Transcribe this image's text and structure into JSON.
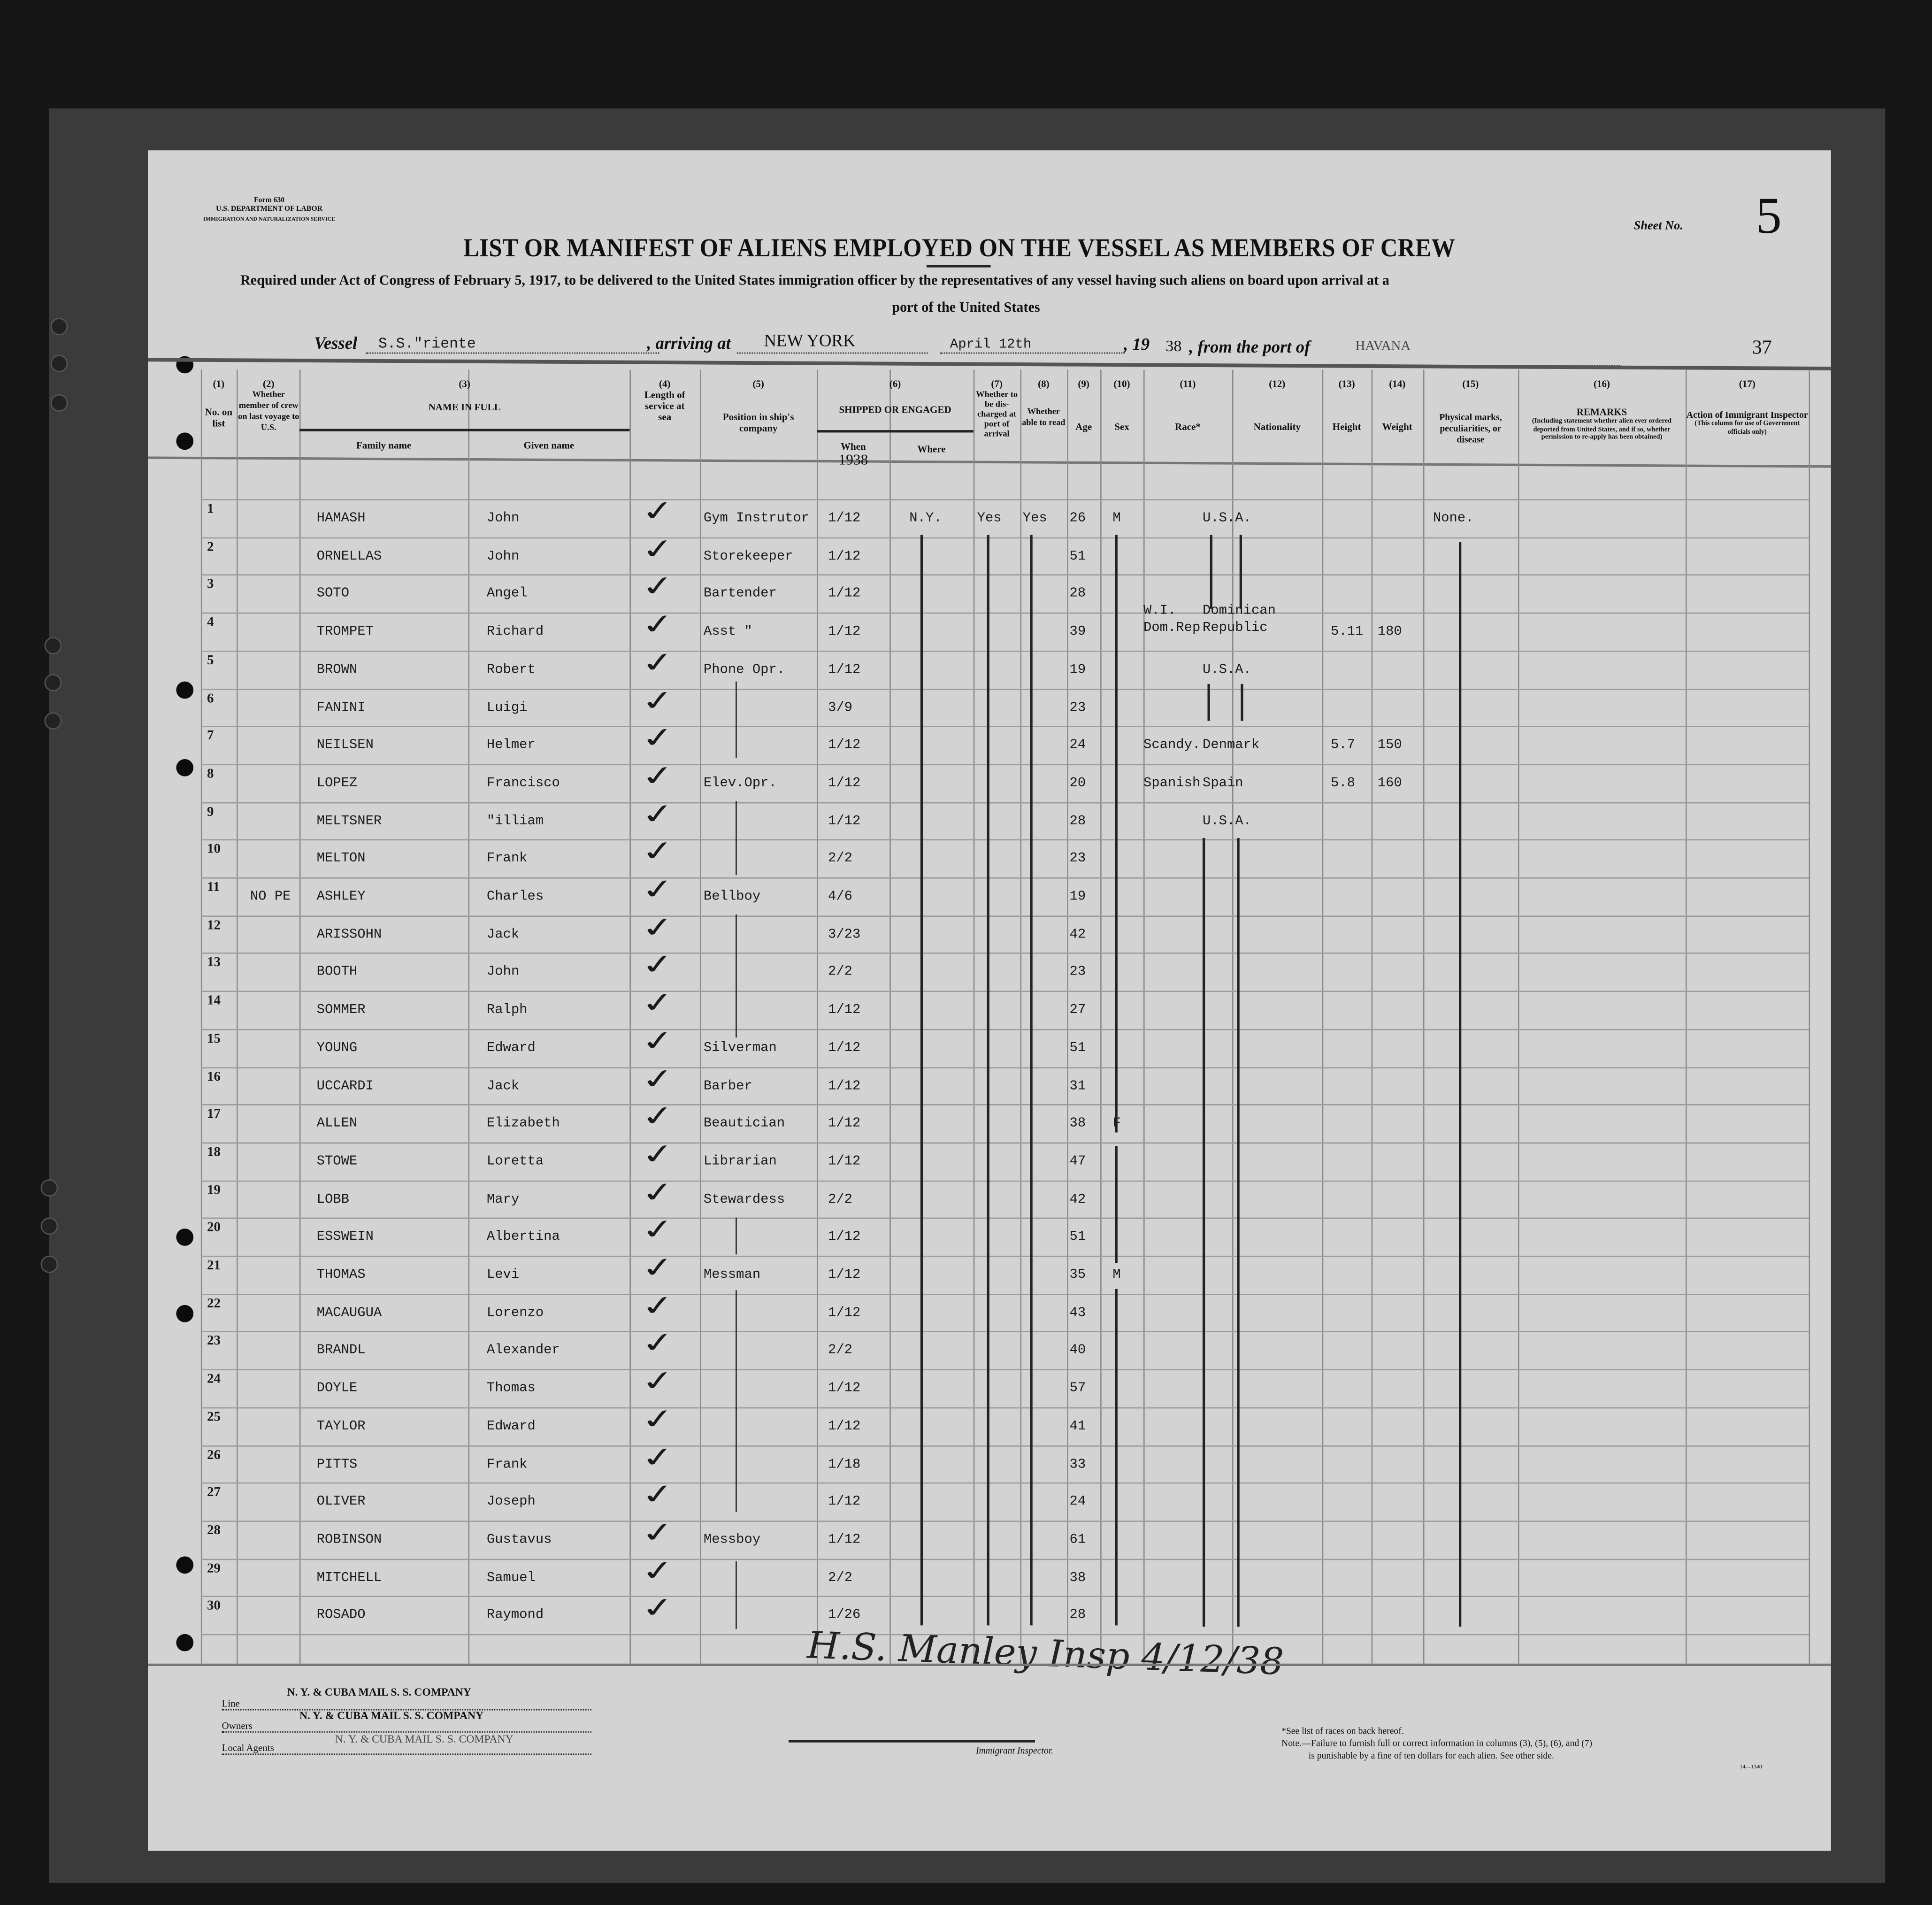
{
  "form": {
    "number": "Form 630",
    "department": "U.S. DEPARTMENT OF LABOR",
    "service": "IMMIGRATION AND NATURALIZATION SERVICE"
  },
  "sheet": {
    "label": "Sheet No.",
    "number": "5"
  },
  "title": "LIST OR MANIFEST OF ALIENS EMPLOYED ON THE VESSEL AS MEMBERS OF CREW",
  "subtitle_line1": "Required under Act of Congress of February 5, 1917, to be delivered to the United States immigration officer by the representatives of any vessel having such aliens on board upon arrival at a",
  "subtitle_line2": "port of the United States",
  "voyage": {
    "vessel_label": "Vessel",
    "vessel": "S.S.\"riente",
    "arriving_label": ", arriving at",
    "arriving_at": "NEW YORK",
    "date": "April 12th",
    "year_prefix": ", 19",
    "year": "38",
    "port_label": ", from the port of",
    "port": "HAVANA",
    "page_number": "37"
  },
  "columns": {
    "c1": {
      "num": "(1)",
      "label": "No. on list"
    },
    "c2": {
      "num": "(2)",
      "label": "Whether member of crew on last voyage to U.S."
    },
    "c3": {
      "num": "(3)",
      "label": "NAME IN FULL",
      "family": "Family name",
      "given": "Given name"
    },
    "c4": {
      "num": "(4)",
      "label": "Length of service at sea"
    },
    "c5": {
      "num": "(5)",
      "label": "Position in ship's company"
    },
    "c6": {
      "num": "(6)",
      "label": "SHIPPED OR ENGAGED",
      "when": "When",
      "when_year": "1938",
      "where": "Where"
    },
    "c7": {
      "num": "(7)",
      "label": "Whether to be dis-charged at port of arrival"
    },
    "c8": {
      "num": "(8)",
      "label": "Whether able to read"
    },
    "c9": {
      "num": "(9)",
      "label": "Age"
    },
    "c10": {
      "num": "(10)",
      "label": "Sex"
    },
    "c11": {
      "num": "(11)",
      "label": "Race*"
    },
    "c12": {
      "num": "(12)",
      "label": "Nationality"
    },
    "c13": {
      "num": "(13)",
      "label": "Height"
    },
    "c14": {
      "num": "(14)",
      "label": "Weight"
    },
    "c15": {
      "num": "(15)",
      "label": "Physical marks, peculiarities, or disease"
    },
    "c16": {
      "num": "(16)",
      "label": "REMARKS",
      "note": "(Including statement whether alien ever ordered deported from United States, and if so, whether permission to re-apply has been obtained)"
    },
    "c17": {
      "num": "(17)",
      "label": "Action of Immigrant Inspector",
      "note": "(This column for use of Government officials only)"
    }
  },
  "rows": [
    {
      "no": "1",
      "last": "",
      "family": "HAMASH",
      "given": "John",
      "len": "✓",
      "pos": "Gym Instrutor",
      "when": "1/12",
      "where": "N.Y.",
      "disch": "Yes",
      "read": "Yes",
      "age": "26",
      "sex": "M",
      "race": "",
      "nat": "U.S.A.",
      "height": "",
      "weight": "",
      "phys": "None."
    },
    {
      "no": "2",
      "last": "",
      "family": "ORNELLAS",
      "given": "John",
      "len": "✓",
      "pos": "Storekeeper",
      "when": "1/12",
      "where": "",
      "disch": "",
      "read": "",
      "age": "51",
      "sex": "",
      "race": "",
      "nat": "",
      "height": "",
      "weight": "",
      "phys": ""
    },
    {
      "no": "3",
      "last": "",
      "family": "SOTO",
      "given": "Angel",
      "len": "✓",
      "pos": "Bartender",
      "when": "1/12",
      "where": "",
      "disch": "",
      "read": "",
      "age": "28",
      "sex": "",
      "race": "",
      "nat": "",
      "height": "",
      "weight": "",
      "phys": ""
    },
    {
      "no": "4",
      "last": "",
      "family": "TROMPET",
      "given": "Richard",
      "len": "✓",
      "pos": "Asst  \"",
      "when": "1/12",
      "where": "",
      "disch": "",
      "read": "",
      "age": "39",
      "sex": "",
      "race": "W.I. Dom.Rep.",
      "nat": "Dominican Republic",
      "height": "5.11",
      "weight": "180",
      "phys": ""
    },
    {
      "no": "5",
      "last": "",
      "family": "BROWN",
      "given": "Robert",
      "len": "✓",
      "pos": "Phone Opr.",
      "when": "1/12",
      "where": "",
      "disch": "",
      "read": "",
      "age": "19",
      "sex": "",
      "race": "",
      "nat": "U.S.A.",
      "height": "",
      "weight": "",
      "phys": ""
    },
    {
      "no": "6",
      "last": "",
      "family": "FANINI",
      "given": "Luigi",
      "len": "✓",
      "pos": "",
      "when": "3/9",
      "where": "",
      "disch": "",
      "read": "",
      "age": "23",
      "sex": "",
      "race": "",
      "nat": "",
      "height": "",
      "weight": "",
      "phys": ""
    },
    {
      "no": "7",
      "last": "",
      "family": "NEILSEN",
      "given": "Helmer",
      "len": "✓",
      "pos": "",
      "when": "1/12",
      "where": "",
      "disch": "",
      "read": "",
      "age": "24",
      "sex": "",
      "race": "Scandy.",
      "nat": "Denmark",
      "height": "5.7",
      "weight": "150",
      "phys": ""
    },
    {
      "no": "8",
      "last": "",
      "family": "LOPEZ",
      "given": "Francisco",
      "len": "✓",
      "pos": "Elev.Opr.",
      "when": "1/12",
      "where": "",
      "disch": "",
      "read": "",
      "age": "20",
      "sex": "",
      "race": "Spanish",
      "nat": "Spain",
      "height": "5.8",
      "weight": "160",
      "phys": ""
    },
    {
      "no": "9",
      "last": "",
      "family": "MELTSNER",
      "given": "\"illiam",
      "len": "✓",
      "pos": "",
      "when": "1/12",
      "where": "",
      "disch": "",
      "read": "",
      "age": "28",
      "sex": "",
      "race": "",
      "nat": "U.S.A.",
      "height": "",
      "weight": "",
      "phys": ""
    },
    {
      "no": "10",
      "last": "",
      "family": "MELTON",
      "given": "Frank",
      "len": "✓",
      "pos": "",
      "when": "2/2",
      "where": "",
      "disch": "",
      "read": "",
      "age": "23",
      "sex": "",
      "race": "",
      "nat": "",
      "height": "",
      "weight": "",
      "phys": ""
    },
    {
      "no": "11",
      "last": "NO PE",
      "family": "ASHLEY",
      "given": "Charles",
      "len": "✓",
      "pos": "Bellboy",
      "when": "4/6",
      "where": "",
      "disch": "",
      "read": "",
      "age": "19",
      "sex": "",
      "race": "",
      "nat": "",
      "height": "",
      "weight": "",
      "phys": ""
    },
    {
      "no": "12",
      "last": "",
      "family": "ARISSOHN",
      "given": "Jack",
      "len": "✓",
      "pos": "",
      "when": "3/23",
      "where": "",
      "disch": "",
      "read": "",
      "age": "42",
      "sex": "",
      "race": "",
      "nat": "",
      "height": "",
      "weight": "",
      "phys": ""
    },
    {
      "no": "13",
      "last": "",
      "family": "BOOTH",
      "given": "John",
      "len": "✓",
      "pos": "",
      "when": "2/2",
      "where": "",
      "disch": "",
      "read": "",
      "age": "23",
      "sex": "",
      "race": "",
      "nat": "",
      "height": "",
      "weight": "",
      "phys": ""
    },
    {
      "no": "14",
      "last": "",
      "family": "SOMMER",
      "given": "Ralph",
      "len": "✓",
      "pos": "",
      "when": "1/12",
      "where": "",
      "disch": "",
      "read": "",
      "age": "27",
      "sex": "",
      "race": "",
      "nat": "",
      "height": "",
      "weight": "",
      "phys": ""
    },
    {
      "no": "15",
      "last": "",
      "family": "YOUNG",
      "given": "Edward",
      "len": "✓",
      "pos": "Silverman",
      "when": "1/12",
      "where": "",
      "disch": "",
      "read": "",
      "age": "51",
      "sex": "",
      "race": "",
      "nat": "",
      "height": "",
      "weight": "",
      "phys": ""
    },
    {
      "no": "16",
      "last": "",
      "family": "UCCARDI",
      "given": "Jack",
      "len": "✓",
      "pos": "Barber",
      "when": "1/12",
      "where": "",
      "disch": "",
      "read": "",
      "age": "31",
      "sex": "",
      "race": "",
      "nat": "",
      "height": "",
      "weight": "",
      "phys": ""
    },
    {
      "no": "17",
      "last": "",
      "family": "ALLEN",
      "given": "Elizabeth",
      "len": "✓",
      "pos": "Beautician",
      "when": "1/12",
      "where": "",
      "disch": "",
      "read": "",
      "age": "38",
      "sex": "F",
      "race": "",
      "nat": "",
      "height": "",
      "weight": "",
      "phys": ""
    },
    {
      "no": "18",
      "last": "",
      "family": "STOWE",
      "given": "Loretta",
      "len": "✓",
      "pos": "Librarian",
      "when": "1/12",
      "where": "",
      "disch": "",
      "read": "",
      "age": "47",
      "sex": "",
      "race": "",
      "nat": "",
      "height": "",
      "weight": "",
      "phys": ""
    },
    {
      "no": "19",
      "last": "",
      "family": "LOBB",
      "given": "Mary",
      "len": "✓",
      "pos": "Stewardess",
      "when": "2/2",
      "where": "",
      "disch": "",
      "read": "",
      "age": "42",
      "sex": "",
      "race": "",
      "nat": "",
      "height": "",
      "weight": "",
      "phys": ""
    },
    {
      "no": "20",
      "last": "",
      "family": "ESSWEIN",
      "given": "Albertina",
      "len": "✓",
      "pos": "",
      "when": "1/12",
      "where": "",
      "disch": "",
      "read": "",
      "age": "51",
      "sex": "",
      "race": "",
      "nat": "",
      "height": "",
      "weight": "",
      "phys": ""
    },
    {
      "no": "21",
      "last": "",
      "family": "THOMAS",
      "given": "Levi",
      "len": "✓",
      "pos": "Messman",
      "when": "1/12",
      "where": "",
      "disch": "",
      "read": "",
      "age": "35",
      "sex": "M",
      "race": "",
      "nat": "",
      "height": "",
      "weight": "",
      "phys": ""
    },
    {
      "no": "22",
      "last": "",
      "family": "MACAUGUA",
      "given": "Lorenzo",
      "len": "✓",
      "pos": "",
      "when": "1/12",
      "where": "",
      "disch": "",
      "read": "",
      "age": "43",
      "sex": "",
      "race": "",
      "nat": "",
      "height": "",
      "weight": "",
      "phys": ""
    },
    {
      "no": "23",
      "last": "",
      "family": "BRANDL",
      "given": "Alexander",
      "len": "✓",
      "pos": "",
      "when": "2/2",
      "where": "",
      "disch": "",
      "read": "",
      "age": "40",
      "sex": "",
      "race": "",
      "nat": "",
      "height": "",
      "weight": "",
      "phys": ""
    },
    {
      "no": "24",
      "last": "",
      "family": "DOYLE",
      "given": "Thomas",
      "len": "✓",
      "pos": "",
      "when": "1/12",
      "where": "",
      "disch": "",
      "read": "",
      "age": "57",
      "sex": "",
      "race": "",
      "nat": "",
      "height": "",
      "weight": "",
      "phys": ""
    },
    {
      "no": "25",
      "last": "",
      "family": "TAYLOR",
      "given": "Edward",
      "len": "✓",
      "pos": "",
      "when": "1/12",
      "where": "",
      "disch": "",
      "read": "",
      "age": "41",
      "sex": "",
      "race": "",
      "nat": "",
      "height": "",
      "weight": "",
      "phys": ""
    },
    {
      "no": "26",
      "last": "",
      "family": "PITTS",
      "given": "Frank",
      "len": "✓",
      "pos": "",
      "when": "1/18",
      "where": "",
      "disch": "",
      "read": "",
      "age": "33",
      "sex": "",
      "race": "",
      "nat": "",
      "height": "",
      "weight": "",
      "phys": ""
    },
    {
      "no": "27",
      "last": "",
      "family": "OLIVER",
      "given": "Joseph",
      "len": "✓",
      "pos": "",
      "when": "1/12",
      "where": "",
      "disch": "",
      "read": "",
      "age": "24",
      "sex": "",
      "race": "",
      "nat": "",
      "height": "",
      "weight": "",
      "phys": ""
    },
    {
      "no": "28",
      "last": "",
      "family": "ROBINSON",
      "given": "Gustavus",
      "len": "✓",
      "pos": "Messboy",
      "when": "1/12",
      "where": "",
      "disch": "",
      "read": "",
      "age": "61",
      "sex": "",
      "race": "",
      "nat": "",
      "height": "",
      "weight": "",
      "phys": ""
    },
    {
      "no": "29",
      "last": "",
      "family": "MITCHELL",
      "given": "Samuel",
      "len": "✓",
      "pos": "",
      "when": "2/2",
      "where": "",
      "disch": "",
      "read": "",
      "age": "38",
      "sex": "",
      "race": "",
      "nat": "",
      "height": "",
      "weight": "",
      "phys": ""
    },
    {
      "no": "30",
      "last": "",
      "family": "ROSADO",
      "given": "Raymond",
      "len": "✓",
      "pos": "",
      "when": "1/26",
      "where": "",
      "disch": "",
      "read": "",
      "age": "28",
      "sex": "",
      "race": "",
      "nat": "",
      "height": "",
      "weight": "",
      "phys": ""
    }
  ],
  "signature": "H.S. Manley Insp 4/12/38",
  "footer": {
    "line_label": "Line",
    "line_value": "N. Y. & CUBA MAIL S. S. COMPANY",
    "owners_label": "Owners",
    "owners_value": "N. Y. & CUBA MAIL S. S. COMPANY",
    "agents_label": "Local Agents",
    "agents_value": "N. Y. & CUBA MAIL S. S. COMPANY",
    "inspector_label": "Immigrant Inspector.",
    "races_note": "*See list of races on back hereof.",
    "note_line1": "Note.—Failure to furnish full or correct information in columns (3), (5), (6), and (7)",
    "note_line2": "is punishable by a fine of ten dollars for each alien.  See other side.",
    "print_code": "14—1340"
  }
}
